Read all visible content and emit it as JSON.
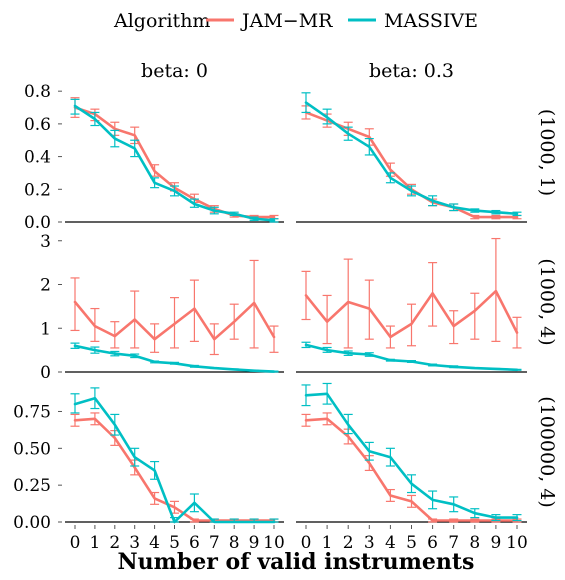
{
  "chart_data": {
    "type": "line",
    "legend": {
      "title": "Algorithm",
      "placement": "top",
      "entries": [
        {
          "name": "JAM−MR",
          "color": "#F8766D"
        },
        {
          "name": "MASSIVE",
          "color": "#00BFC4"
        }
      ]
    },
    "xlabel": "Number of valid instruments",
    "x": [
      0,
      1,
      2,
      3,
      4,
      5,
      6,
      7,
      8,
      9,
      10
    ],
    "x_tick_labels": [
      "0",
      "1",
      "2",
      "3",
      "4",
      "5",
      "6",
      "7",
      "8",
      "9",
      "10"
    ],
    "column_strips": [
      "beta: 0",
      "beta: 0.3"
    ],
    "row_strips": [
      "(1000, 1)",
      "(1000, 4)",
      "(100000, 4)"
    ],
    "rows": [
      {
        "strip": "(1000, 1)",
        "ylim": [
          0,
          0.85
        ],
        "yticks": [
          0,
          0.2,
          0.4,
          0.6,
          0.8
        ],
        "ytick_labels": [
          "0.0",
          "0.2",
          "0.4",
          "0.6",
          "0.8"
        ],
        "panels": [
          {
            "column": "beta: 0",
            "series": [
              {
                "name": "JAM−MR",
                "values": [
                  0.7,
                  0.66,
                  0.57,
                  0.53,
                  0.31,
                  0.21,
                  0.14,
                  0.08,
                  0.04,
                  0.03,
                  0.03
                ],
                "lower": [
                  0.64,
                  0.62,
                  0.53,
                  0.48,
                  0.28,
                  0.19,
                  0.12,
                  0.06,
                  0.03,
                  0.02,
                  0.02
                ],
                "upper": [
                  0.76,
                  0.69,
                  0.61,
                  0.58,
                  0.35,
                  0.24,
                  0.17,
                  0.1,
                  0.05,
                  0.04,
                  0.04
                ]
              },
              {
                "name": "MASSIVE",
                "values": [
                  0.71,
                  0.63,
                  0.51,
                  0.45,
                  0.24,
                  0.19,
                  0.11,
                  0.07,
                  0.05,
                  0.02,
                  0.01
                ],
                "lower": [
                  0.66,
                  0.59,
                  0.46,
                  0.4,
                  0.21,
                  0.16,
                  0.09,
                  0.05,
                  0.04,
                  0.01,
                  0.0
                ],
                "upper": [
                  0.75,
                  0.67,
                  0.56,
                  0.5,
                  0.27,
                  0.22,
                  0.14,
                  0.09,
                  0.06,
                  0.03,
                  0.02
                ]
              }
            ]
          },
          {
            "column": "beta: 0.3",
            "series": [
              {
                "name": "JAM−MR",
                "values": [
                  0.67,
                  0.62,
                  0.57,
                  0.52,
                  0.32,
                  0.2,
                  0.12,
                  0.09,
                  0.03,
                  0.03,
                  0.03
                ],
                "lower": [
                  0.63,
                  0.58,
                  0.53,
                  0.47,
                  0.28,
                  0.17,
                  0.1,
                  0.07,
                  0.02,
                  0.02,
                  0.02
                ],
                "upper": [
                  0.71,
                  0.66,
                  0.61,
                  0.57,
                  0.36,
                  0.23,
                  0.14,
                  0.11,
                  0.04,
                  0.04,
                  0.04
                ]
              },
              {
                "name": "MASSIVE",
                "values": [
                  0.73,
                  0.64,
                  0.54,
                  0.46,
                  0.27,
                  0.19,
                  0.13,
                  0.09,
                  0.07,
                  0.06,
                  0.05
                ],
                "lower": [
                  0.67,
                  0.6,
                  0.5,
                  0.41,
                  0.24,
                  0.16,
                  0.1,
                  0.07,
                  0.06,
                  0.05,
                  0.04
                ],
                "upper": [
                  0.79,
                  0.69,
                  0.58,
                  0.51,
                  0.3,
                  0.22,
                  0.16,
                  0.11,
                  0.08,
                  0.07,
                  0.06
                ]
              }
            ]
          }
        ]
      },
      {
        "strip": "(1000, 4)",
        "ylim": [
          0,
          3.2
        ],
        "yticks": [
          0,
          1,
          2,
          3
        ],
        "ytick_labels": [
          "0",
          "1",
          "2",
          "3"
        ],
        "panels": [
          {
            "column": "beta: 0",
            "series": [
              {
                "name": "JAM−MR",
                "values": [
                  1.6,
                  1.05,
                  0.82,
                  1.2,
                  0.75,
                  1.1,
                  1.45,
                  0.75,
                  1.15,
                  1.58,
                  0.8
                ],
                "lower": [
                  0.95,
                  0.7,
                  0.55,
                  0.55,
                  0.45,
                  0.55,
                  0.7,
                  0.4,
                  0.75,
                  0.55,
                  0.45
                ],
                "upper": [
                  2.15,
                  1.45,
                  1.15,
                  1.85,
                  1.1,
                  1.7,
                  2.1,
                  1.1,
                  1.55,
                  2.55,
                  1.05
                ]
              },
              {
                "name": "MASSIVE",
                "values": [
                  0.6,
                  0.5,
                  0.42,
                  0.37,
                  0.23,
                  0.2,
                  0.13,
                  0.09,
                  0.06,
                  0.03,
                  0.01
                ],
                "lower": [
                  0.54,
                  0.43,
                  0.37,
                  0.33,
                  0.21,
                  0.18,
                  0.11,
                  0.08,
                  0.05,
                  0.02,
                  0.0
                ],
                "upper": [
                  0.66,
                  0.57,
                  0.47,
                  0.41,
                  0.25,
                  0.22,
                  0.15,
                  0.1,
                  0.07,
                  0.04,
                  0.02
                ]
              }
            ]
          },
          {
            "column": "beta: 0.3",
            "series": [
              {
                "name": "JAM−MR",
                "values": [
                  1.75,
                  1.15,
                  1.6,
                  1.45,
                  0.8,
                  1.1,
                  1.8,
                  1.05,
                  1.4,
                  1.85,
                  0.9
                ],
                "lower": [
                  1.2,
                  0.65,
                  0.55,
                  0.75,
                  0.55,
                  0.6,
                  1.05,
                  0.65,
                  0.75,
                  0.7,
                  0.55
                ],
                "upper": [
                  2.3,
                  1.75,
                  2.58,
                  2.1,
                  1.05,
                  1.55,
                  2.5,
                  1.4,
                  1.8,
                  3.05,
                  1.25
                ]
              },
              {
                "name": "MASSIVE",
                "values": [
                  0.62,
                  0.5,
                  0.43,
                  0.4,
                  0.27,
                  0.24,
                  0.16,
                  0.12,
                  0.09,
                  0.07,
                  0.05
                ],
                "lower": [
                  0.56,
                  0.45,
                  0.38,
                  0.36,
                  0.25,
                  0.22,
                  0.14,
                  0.1,
                  0.08,
                  0.06,
                  0.04
                ],
                "upper": [
                  0.68,
                  0.56,
                  0.48,
                  0.44,
                  0.29,
                  0.26,
                  0.18,
                  0.14,
                  0.1,
                  0.08,
                  0.06
                ]
              }
            ]
          }
        ]
      },
      {
        "strip": "(100000, 4)",
        "ylim": [
          0,
          0.95
        ],
        "yticks": [
          0,
          0.25,
          0.5,
          0.75
        ],
        "ytick_labels": [
          "0.00",
          "0.25",
          "0.50",
          "0.75"
        ],
        "panels": [
          {
            "column": "beta: 0",
            "series": [
              {
                "name": "JAM−MR",
                "values": [
                  0.69,
                  0.7,
                  0.57,
                  0.37,
                  0.16,
                  0.1,
                  0.01,
                  0.01,
                  0.01,
                  0.01,
                  0.01
                ],
                "lower": [
                  0.65,
                  0.66,
                  0.52,
                  0.32,
                  0.12,
                  0.06,
                  0.0,
                  0.0,
                  0.0,
                  0.0,
                  0.0
                ],
                "upper": [
                  0.73,
                  0.74,
                  0.62,
                  0.42,
                  0.2,
                  0.14,
                  0.02,
                  0.02,
                  0.02,
                  0.02,
                  0.02
                ]
              },
              {
                "name": "MASSIVE",
                "values": [
                  0.8,
                  0.84,
                  0.66,
                  0.44,
                  0.35,
                  0.0,
                  0.13,
                  0.0,
                  0.0,
                  0.0,
                  0.0
                ],
                "lower": [
                  0.74,
                  0.77,
                  0.59,
                  0.38,
                  0.29,
                  0.0,
                  0.07,
                  0.0,
                  0.0,
                  0.0,
                  0.0
                ],
                "upper": [
                  0.87,
                  0.91,
                  0.73,
                  0.5,
                  0.41,
                  0.03,
                  0.19,
                  0.02,
                  0.02,
                  0.02,
                  0.02
                ]
              }
            ]
          },
          {
            "column": "beta: 0.3",
            "series": [
              {
                "name": "JAM−MR",
                "values": [
                  0.69,
                  0.7,
                  0.58,
                  0.4,
                  0.18,
                  0.14,
                  0.01,
                  0.01,
                  0.01,
                  0.01,
                  0.01
                ],
                "lower": [
                  0.65,
                  0.66,
                  0.53,
                  0.35,
                  0.14,
                  0.1,
                  0.0,
                  0.0,
                  0.0,
                  0.0,
                  0.0
                ],
                "upper": [
                  0.73,
                  0.74,
                  0.63,
                  0.45,
                  0.22,
                  0.18,
                  0.02,
                  0.02,
                  0.02,
                  0.02,
                  0.02
                ]
              },
              {
                "name": "MASSIVE",
                "values": [
                  0.86,
                  0.87,
                  0.66,
                  0.48,
                  0.44,
                  0.26,
                  0.15,
                  0.12,
                  0.06,
                  0.03,
                  0.03
                ],
                "lower": [
                  0.79,
                  0.8,
                  0.6,
                  0.42,
                  0.38,
                  0.2,
                  0.09,
                  0.07,
                  0.03,
                  0.01,
                  0.01
                ],
                "upper": [
                  0.93,
                  0.94,
                  0.73,
                  0.54,
                  0.5,
                  0.32,
                  0.21,
                  0.17,
                  0.09,
                  0.05,
                  0.05
                ]
              }
            ]
          }
        ]
      }
    ]
  }
}
